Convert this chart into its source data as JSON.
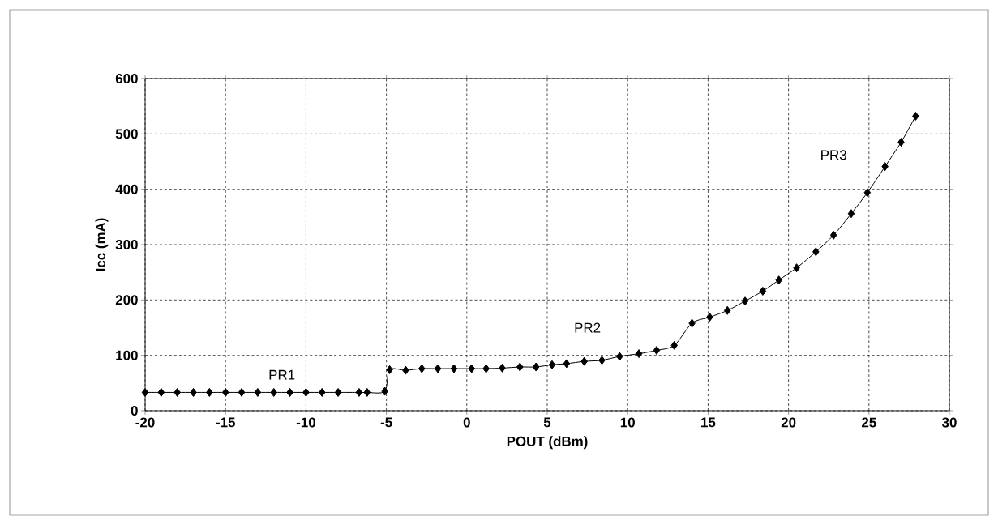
{
  "chart_data": {
    "type": "line",
    "xlabel": "POUT (dBm)",
    "ylabel": "Icc (mA)",
    "x": [
      -20,
      -19,
      -18,
      -17,
      -16,
      -15,
      -14,
      -13,
      -12,
      -11,
      -10,
      -9,
      -8,
      -6.7,
      -6.2,
      -5.1,
      -4.8,
      -3.8,
      -2.8,
      -1.8,
      -0.8,
      0.3,
      1.2,
      2.2,
      3.3,
      4.3,
      5.3,
      6.2,
      7.3,
      8.4,
      9.5,
      10.7,
      11.8,
      12.9,
      14.0,
      15.1,
      16.2,
      17.3,
      18.4,
      19.4,
      20.5,
      21.7,
      22.8,
      23.9,
      24.9,
      26.0,
      27.0,
      27.9
    ],
    "series": [
      {
        "color": "#000000",
        "values": [
          33,
          33,
          33,
          33,
          33,
          33,
          33,
          33,
          33,
          33,
          33,
          33,
          33,
          33,
          33,
          35,
          74,
          73,
          76,
          76,
          76,
          76,
          76,
          77,
          79,
          79,
          83,
          85,
          89,
          91,
          98,
          103,
          109,
          118,
          158,
          169,
          181,
          198,
          216,
          236,
          258,
          287,
          317,
          356,
          394,
          441,
          485,
          532
        ]
      }
    ],
    "xlim": [
      -20,
      30
    ],
    "xticks": [
      -20,
      -15,
      -10,
      -5,
      0,
      5,
      10,
      15,
      20,
      25,
      30
    ],
    "ylim": [
      0,
      600
    ],
    "yticks": [
      0,
      100,
      200,
      300,
      400,
      500,
      600
    ],
    "grid": true,
    "marker": "diamond",
    "line_style": "solid",
    "annotations": [
      "PR1",
      "PR2",
      "PR3"
    ]
  }
}
